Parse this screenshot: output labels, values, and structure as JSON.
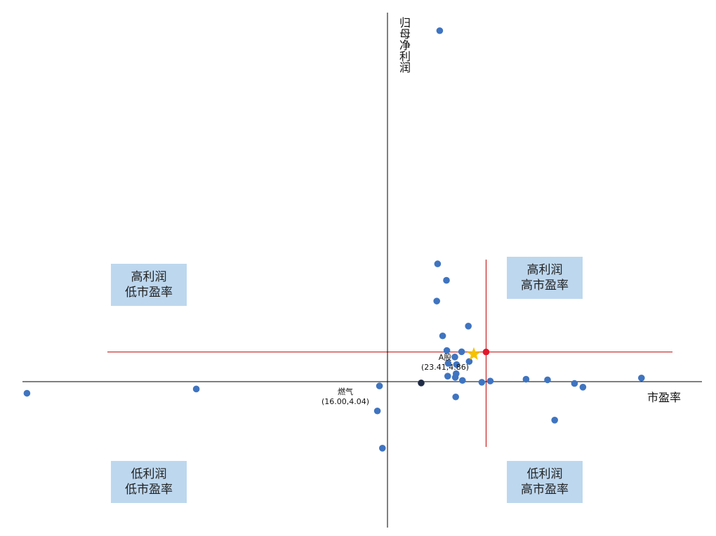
{
  "chart_data": {
    "type": "scatter",
    "xlabel": "市盈率",
    "ylabel": "归母净利润",
    "quadrants": {
      "top_left": [
        "高利润",
        "低市盈率"
      ],
      "top_right": [
        "高利润",
        "高市盈率"
      ],
      "bottom_left": [
        "低利润",
        "低市盈率"
      ],
      "bottom_right": [
        "低利润",
        "高市盈率"
      ]
    },
    "colors": {
      "points": "#3f74c0",
      "reference_lines": "#c00000",
      "axes": "#000000",
      "quadrant_bg": "#bdd7ee",
      "industry_marker": "#f5c200",
      "gas_marker": "#1f2a44",
      "a_share_marker": "#e0182b"
    },
    "reference": {
      "name": "A股",
      "label": "(23.41,4.86)",
      "x": 23.41,
      "y": 4.86
    },
    "highlight": {
      "name": "燃气",
      "label": "(16.00,4.04)",
      "x": 16.0,
      "y": 4.04
    },
    "industry_average": {
      "x": 20.5,
      "y": 4.5
    },
    "points": [
      {
        "x": 12.4,
        "y": 57.5
      },
      {
        "x": 11.9,
        "y": 19.3
      },
      {
        "x": 14.0,
        "y": 16.6
      },
      {
        "x": 11.7,
        "y": 13.2
      },
      {
        "x": 13.1,
        "y": 7.5
      },
      {
        "x": 19.2,
        "y": 9.1
      },
      {
        "x": 14.1,
        "y": 5.1
      },
      {
        "x": 17.6,
        "y": 4.9
      },
      {
        "x": 16.0,
        "y": 4.04
      },
      {
        "x": 19.4,
        "y": 3.3
      },
      {
        "x": 14.4,
        "y": 3.0
      },
      {
        "x": 16.4,
        "y": 2.8
      },
      {
        "x": 16.3,
        "y": 1.3
      },
      {
        "x": 14.3,
        "y": 0.9
      },
      {
        "x": 16.1,
        "y": 0.7
      },
      {
        "x": 17.8,
        "y": 0.2
      },
      {
        "x": 22.4,
        "y": -0.1
      },
      {
        "x": 24.4,
        "y": 0.1
      },
      {
        "x": 32.9,
        "y": 0.4
      },
      {
        "x": 38.0,
        "y": 0.3
      },
      {
        "x": 44.4,
        "y": -0.3
      },
      {
        "x": 46.4,
        "y": -0.9
      },
      {
        "x": 60.3,
        "y": 0.6
      },
      {
        "x": 16.2,
        "y": -2.5
      },
      {
        "x": -1.9,
        "y": -0.7
      },
      {
        "x": -2.4,
        "y": -4.8
      },
      {
        "x": 39.7,
        "y": -6.3
      },
      {
        "x": -45.4,
        "y": -1.2
      },
      {
        "x": -85.6,
        "y": -1.9
      },
      {
        "x": -1.2,
        "y": -10.9
      }
    ]
  }
}
